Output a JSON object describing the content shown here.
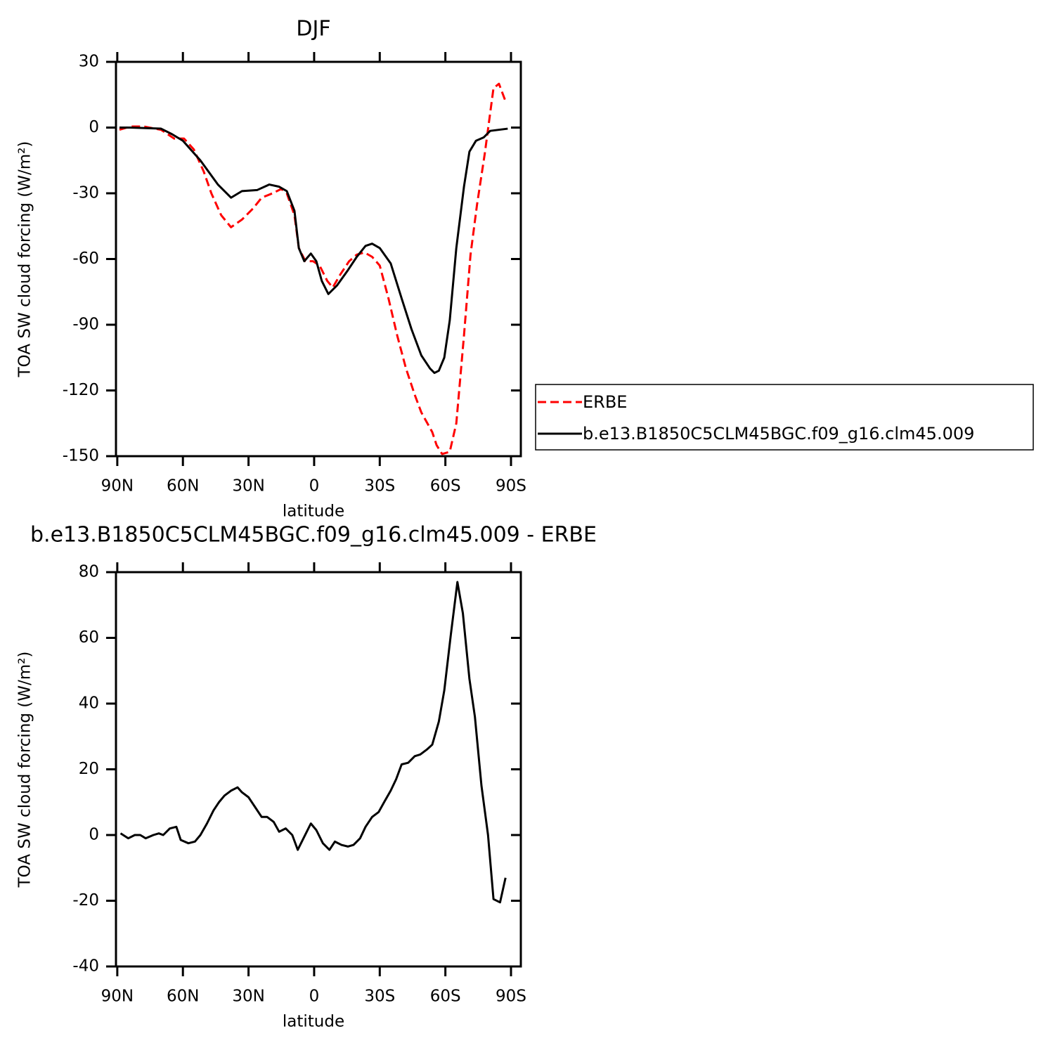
{
  "chart_data": [
    {
      "type": "line",
      "title": "DJF",
      "xlabel": "latitude",
      "ylabel": "TOA SW cloud forcing (W/m²)",
      "xlim": [
        90.6,
        -94.5
      ],
      "xticks": [
        {
          "value": 90,
          "label": "90N"
        },
        {
          "value": 60,
          "label": "60N"
        },
        {
          "value": 30,
          "label": "30N"
        },
        0,
        {
          "value": -30,
          "label": "30S"
        },
        {
          "value": -60,
          "label": "60S"
        },
        {
          "value": -90,
          "label": "90S"
        }
      ],
      "ylim": [
        -150,
        30
      ],
      "yticks": [
        30,
        0,
        -30,
        -60,
        -90,
        -120,
        -150
      ],
      "legend": "right",
      "series": [
        {
          "name": "ERBE",
          "color": "#ff0000",
          "line_style": "dashed",
          "x": [
            89,
            84,
            78,
            70,
            64,
            59.5,
            55,
            50.5,
            47,
            42.5,
            38,
            33,
            28,
            24,
            19,
            15,
            12.5,
            9,
            7,
            4,
            0.5,
            -2.5,
            -6,
            -8.5,
            -12,
            -16,
            -19.5,
            -23,
            -26.5,
            -30,
            -34,
            -38,
            -42,
            -46,
            -49,
            -54,
            -56,
            -58.5,
            -62,
            -65,
            -68.5,
            -71.5,
            -74.5,
            -78,
            -82,
            -84.5,
            -87.5
          ],
          "values": [
            -1,
            0.5,
            0.5,
            -1,
            -5,
            -5,
            -10,
            -20,
            -30,
            -40,
            -45.5,
            -42,
            -37,
            -32,
            -30,
            -28,
            -30,
            -40,
            -55,
            -61,
            -61,
            -63,
            -70,
            -73,
            -67,
            -61,
            -58,
            -57,
            -59,
            -63,
            -78,
            -95,
            -110,
            -122,
            -130,
            -139,
            -145,
            -149,
            -148,
            -135,
            -95,
            -58,
            -35,
            -12,
            18,
            20,
            12
          ]
        },
        {
          "name": "b.e13.B1850C5CLM45BGC.f09_g16.clm45.009",
          "color": "#000000",
          "line_style": "solid",
          "x": [
            89,
            84,
            70,
            65,
            60,
            52,
            44,
            38,
            33,
            26,
            20.5,
            16,
            12.5,
            9,
            7,
            4.5,
            1.5,
            -1,
            -3.5,
            -6.5,
            -10.5,
            -15.5,
            -19.5,
            -23.5,
            -26.5,
            -30,
            -35,
            -40,
            -44.5,
            -49,
            -53,
            -55,
            -57,
            -59.5,
            -62,
            -65,
            -68.5,
            -71,
            -74,
            -77.5,
            -80.5,
            -88.5
          ],
          "values": [
            0,
            0,
            -0.5,
            -3,
            -6,
            -15,
            -26,
            -32,
            -29,
            -28.5,
            -26,
            -27,
            -29,
            -38,
            -55,
            -61,
            -57.5,
            -61,
            -70,
            -76,
            -72,
            -65,
            -59,
            -54,
            -53,
            -55,
            -62,
            -78,
            -92,
            -104,
            -110,
            -112,
            -111,
            -105,
            -88,
            -55,
            -27,
            -11,
            -6,
            -4.5,
            -1.5,
            -0.5
          ]
        }
      ]
    },
    {
      "type": "line",
      "title": "b.e13.B1850C5CLM45BGC.f09_g16.clm45.009 - ERBE",
      "xlabel": "latitude",
      "ylabel": "TOA SW cloud forcing (W/m²)",
      "xlim": [
        90.6,
        -94.5
      ],
      "xticks": [
        {
          "value": 90,
          "label": "90N"
        },
        {
          "value": 60,
          "label": "60N"
        },
        {
          "value": 30,
          "label": "30N"
        },
        0,
        {
          "value": -30,
          "label": "30S"
        },
        {
          "value": -60,
          "label": "60S"
        },
        {
          "value": -90,
          "label": "90S"
        }
      ],
      "ylim": [
        -40,
        80
      ],
      "yticks": [
        80,
        60,
        40,
        20,
        0,
        -20,
        -40
      ],
      "color": "#000000",
      "x": [
        88.5,
        85,
        82,
        79.5,
        77,
        73.5,
        71,
        69,
        66,
        63,
        61,
        57.5,
        54.5,
        52,
        49,
        46,
        43.5,
        41,
        38,
        35,
        33,
        30,
        27,
        24,
        21.5,
        18.5,
        16,
        13,
        10,
        7.5,
        4.5,
        1.5,
        -1,
        -4,
        -7,
        -9.5,
        -12.5,
        -15.5,
        -18,
        -21,
        -23.5,
        -26.5,
        -29.5,
        -32,
        -35,
        -37.5,
        -40,
        -43,
        -46,
        -48.5,
        -51.5,
        -54,
        -57,
        -59.5,
        -62.5,
        -65.5,
        -68,
        -71,
        -73.5,
        -76.5,
        -79.5,
        -82,
        -85,
        -87.5
      ],
      "values": [
        0.5,
        -1,
        0,
        0,
        -1,
        0,
        0.5,
        0,
        2,
        2.5,
        -1.5,
        -2.5,
        -2,
        0,
        3.5,
        7.5,
        10,
        12,
        13.5,
        14.5,
        13,
        11.5,
        8.5,
        5.5,
        5.5,
        4,
        1,
        2,
        0,
        -4.5,
        -0.5,
        3.5,
        1.5,
        -2.5,
        -4.5,
        -2,
        -3,
        -3.5,
        -3,
        -1,
        2.5,
        5.5,
        7,
        10,
        13.5,
        17,
        21.5,
        22,
        24,
        24.5,
        26,
        27.5,
        34.5,
        44,
        61,
        77,
        67.5,
        47.5,
        36,
        15,
        0,
        -19.5,
        -20.5,
        -13
      ]
    }
  ]
}
